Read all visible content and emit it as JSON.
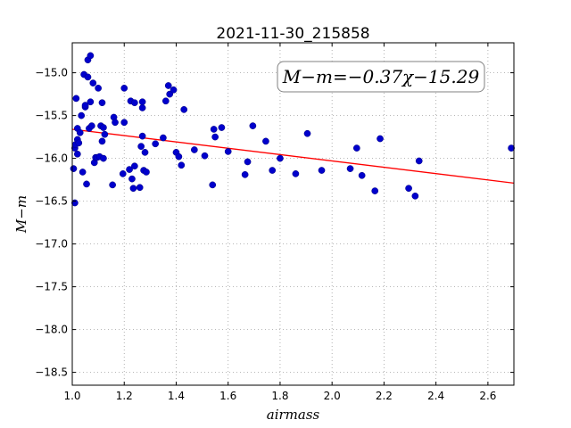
{
  "chart_data": {
    "type": "scatter",
    "title": "2021-11-30_215858",
    "xlabel": "airmass",
    "ylabel": "M−m",
    "xlim": [
      1.0,
      2.7
    ],
    "ylim": [
      -18.65,
      -14.65
    ],
    "y_inverted": true,
    "grid": true,
    "xticks": [
      1.0,
      1.2,
      1.4,
      1.6,
      1.8,
      2.0,
      2.2,
      2.4,
      2.6
    ],
    "xtick_labels": [
      "1.0",
      "1.2",
      "1.4",
      "1.6",
      "1.8",
      "2.0",
      "2.2",
      "2.4",
      "2.6"
    ],
    "yticks": [
      -15.0,
      -15.5,
      -16.0,
      -16.5,
      -17.0,
      -17.5,
      -18.0,
      -18.5
    ],
    "ytick_labels": [
      "−15.0",
      "−15.5",
      "−16.0",
      "−16.5",
      "−17.0",
      "−17.5",
      "−18.0",
      "−18.5"
    ],
    "annotation": "M−m=−0.37χ−15.29",
    "annotation_location": "top-right",
    "fit_line": {
      "slope": -0.37,
      "intercept": -15.29,
      "color": "#ff0000"
    },
    "point_color": "#0000cc",
    "series": [
      {
        "x": [
          1.005,
          1.01,
          1.01,
          1.012,
          1.015,
          1.02,
          1.02,
          1.02,
          1.025,
          1.03,
          1.035,
          1.04,
          1.045,
          1.05,
          1.05,
          1.055,
          1.06,
          1.06,
          1.065,
          1.07,
          1.07,
          1.075,
          1.08,
          1.085,
          1.09,
          1.095,
          1.1,
          1.105,
          1.11,
          1.115,
          1.115,
          1.12,
          1.12,
          1.125,
          1.155,
          1.16,
          1.165,
          1.195,
          1.2,
          1.2,
          1.22,
          1.225,
          1.23,
          1.235,
          1.24,
          1.24,
          1.26,
          1.265,
          1.27,
          1.27,
          1.27,
          1.275,
          1.28,
          1.285,
          1.32,
          1.35,
          1.36,
          1.37,
          1.375,
          1.39,
          1.4,
          1.41,
          1.42,
          1.43,
          1.47,
          1.51,
          1.54,
          1.545,
          1.55,
          1.575,
          1.6,
          1.665,
          1.675,
          1.695,
          1.745,
          1.77,
          1.8,
          1.86,
          1.905,
          1.96,
          2.07,
          2.095,
          2.115,
          2.165,
          2.185,
          2.295,
          2.32,
          2.335,
          2.69
        ],
        "y": [
          -16.12,
          -15.88,
          -16.52,
          -15.84,
          -15.3,
          -15.78,
          -15.95,
          -15.65,
          -15.82,
          -15.7,
          -15.5,
          -16.16,
          -15.02,
          -15.4,
          -15.38,
          -16.3,
          -14.85,
          -15.05,
          -15.65,
          -15.34,
          -14.8,
          -15.62,
          -15.12,
          -16.05,
          -15.99,
          -15.99,
          -15.18,
          -15.98,
          -15.62,
          -15.35,
          -15.8,
          -15.64,
          -16.0,
          -15.72,
          -16.31,
          -15.52,
          -15.58,
          -16.18,
          -15.18,
          -15.58,
          -16.13,
          -15.33,
          -16.24,
          -16.35,
          -15.35,
          -16.09,
          -16.34,
          -15.86,
          -15.41,
          -15.34,
          -15.74,
          -16.14,
          -15.93,
          -16.16,
          -15.83,
          -15.76,
          -15.33,
          -15.15,
          -15.25,
          -15.2,
          -15.93,
          -15.98,
          -16.08,
          -15.43,
          -15.9,
          -15.97,
          -16.31,
          -15.66,
          -15.75,
          -15.64,
          -15.92,
          -16.19,
          -16.04,
          -15.62,
          -15.8,
          -16.14,
          -16.0,
          -16.18,
          -15.71,
          -16.14,
          -16.12,
          -15.88,
          -16.2,
          -16.38,
          -15.77,
          -16.35,
          -16.44,
          -16.03,
          -15.88
        ]
      }
    ]
  }
}
